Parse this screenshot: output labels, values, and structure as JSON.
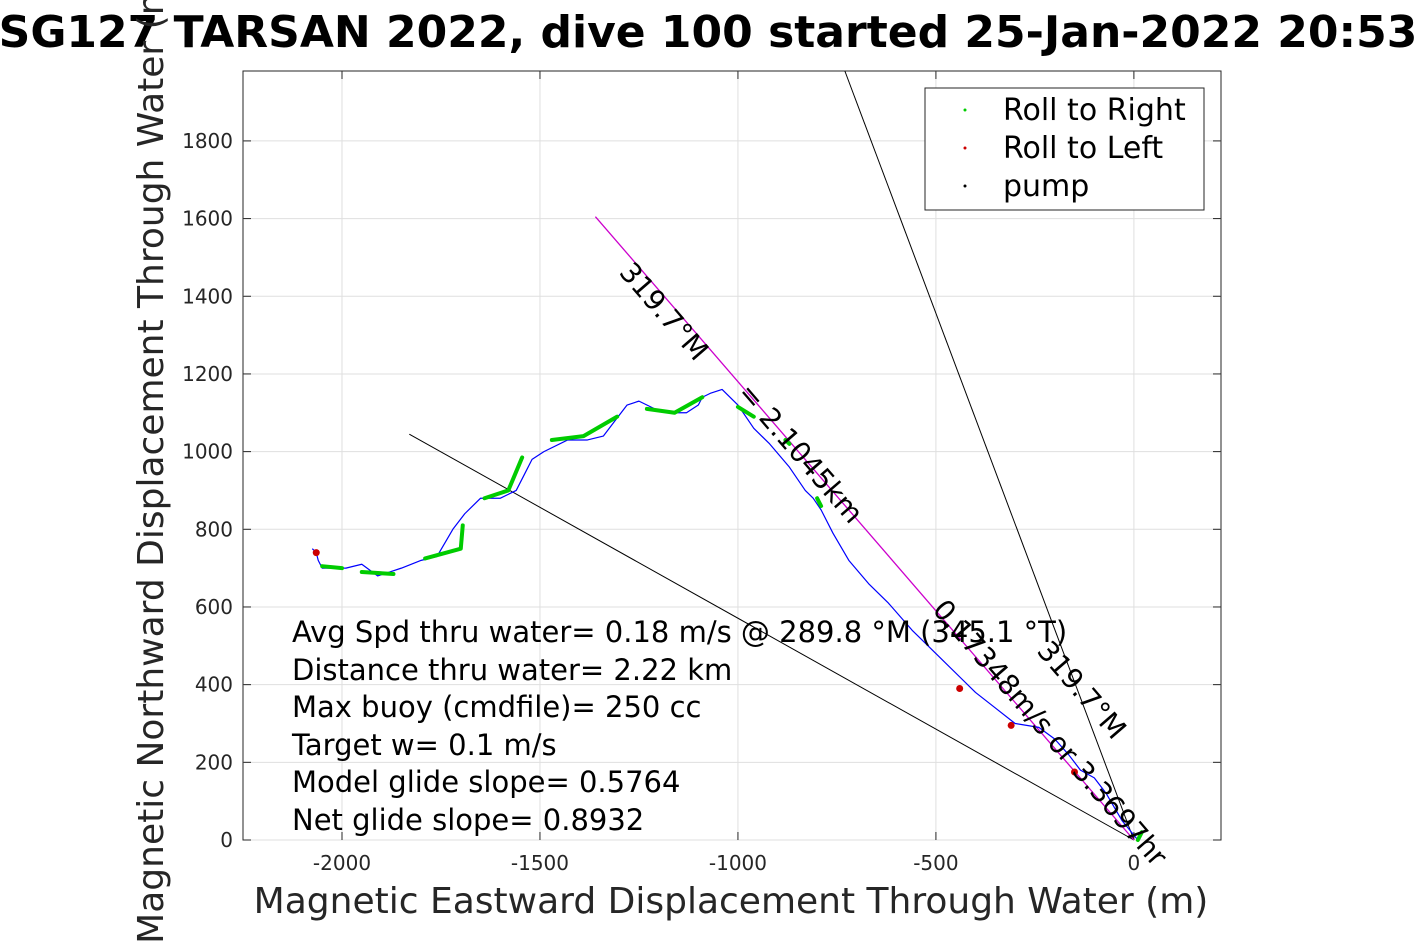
{
  "chart_data": {
    "type": "line",
    "title": "SG127 TARSAN 2022, dive 100 started 25-Jan-2022 20:53",
    "xlabel": "Magnetic Eastward Displacement Through Water (m)",
    "ylabel": "Magnetic Northward Displacement Through Water (m)",
    "xlim": [
      -2250,
      220
    ],
    "ylim": [
      0,
      1980
    ],
    "xticks": [
      -2000,
      -1500,
      -1000,
      -500,
      0
    ],
    "yticks": [
      0,
      200,
      400,
      600,
      800,
      1000,
      1200,
      1400,
      1600,
      1800
    ],
    "grid": true,
    "legend_position": "top-right",
    "legend": [
      {
        "label": "Roll to Right",
        "color": "#00cc00"
      },
      {
        "label": "Roll to Left",
        "color": "#cc0000"
      },
      {
        "label": "pump",
        "color": "#000000"
      }
    ],
    "track": {
      "color": "#0000ff",
      "x": [
        10,
        -30,
        -70,
        -100,
        -135,
        -165,
        -200,
        -240,
        -300,
        -350,
        -400,
        -440,
        -500,
        -560,
        -620,
        -670,
        -720,
        -760,
        -790,
        -810,
        -830,
        -870,
        -920,
        -960,
        -1000,
        -1040,
        -1070,
        -1090,
        -1100,
        -1130,
        -1170,
        -1210,
        -1250,
        -1280,
        -1310,
        -1340,
        -1380,
        -1430,
        -1490,
        -1520,
        -1540,
        -1560,
        -1600,
        -1650,
        -1690,
        -1720,
        -1760,
        -1800,
        -1850,
        -1880,
        -1910,
        -1950,
        -1990,
        -2020,
        -2050,
        -2060,
        -2065,
        -2075
      ],
      "y": [
        0,
        50,
        120,
        160,
        180,
        220,
        260,
        290,
        300,
        340,
        380,
        420,
        480,
        540,
        610,
        660,
        720,
        790,
        850,
        880,
        900,
        960,
        1020,
        1060,
        1120,
        1160,
        1150,
        1140,
        1120,
        1100,
        1100,
        1110,
        1130,
        1120,
        1080,
        1040,
        1030,
        1030,
        1000,
        980,
        940,
        900,
        880,
        880,
        840,
        800,
        730,
        720,
        700,
        690,
        680,
        710,
        700,
        700,
        700,
        720,
        740,
        750
      ]
    },
    "heading_line": {
      "color": "#cc00cc",
      "x": [
        0,
        -1360
      ],
      "y": [
        0,
        1605
      ]
    },
    "bound_lines": [
      {
        "x": [
          0,
          -730
        ],
        "y": [
          0,
          1980
        ]
      },
      {
        "x": [
          0,
          -1830
        ],
        "y": [
          0,
          1045
        ]
      }
    ],
    "roll_right_segments": [
      [
        [
          -2050,
          705
        ],
        [
          -2000,
          700
        ]
      ],
      [
        [
          -1950,
          690
        ],
        [
          -1870,
          685
        ]
      ],
      [
        [
          -1790,
          725
        ],
        [
          -1700,
          750
        ],
        [
          -1695,
          810
        ]
      ],
      [
        [
          -1640,
          880
        ],
        [
          -1580,
          900
        ],
        [
          -1545,
          985
        ]
      ],
      [
        [
          -1470,
          1030
        ],
        [
          -1390,
          1040
        ],
        [
          -1305,
          1090
        ]
      ],
      [
        [
          -1230,
          1110
        ],
        [
          -1160,
          1100
        ],
        [
          -1090,
          1140
        ]
      ],
      [
        [
          -1000,
          1115
        ],
        [
          -960,
          1090
        ]
      ],
      [
        [
          -880,
          1030
        ],
        [
          -870,
          1020
        ]
      ],
      [
        [
          -800,
          880
        ],
        [
          -790,
          860
        ]
      ],
      [
        [
          10,
          0
        ],
        [
          20,
          20
        ]
      ]
    ],
    "roll_left_points": [
      [
        -2065,
        740
      ],
      [
        -440,
        390
      ],
      [
        -310,
        295
      ],
      [
        -150,
        175
      ]
    ],
    "pump_points": [],
    "annotations": {
      "heading_upper": "319.7°M",
      "distance_label": "2.1045km",
      "speed_label": "= 0.17348m/s or 3.3697hr",
      "heading_lower": "319.7°M",
      "dist_prefix": "2.1045km",
      "km_line_text": "= 2.1045km",
      "rate_text": "0.17348m/s or 3.3697hr"
    },
    "stats": {
      "avg_speed": "Avg Spd thru water=  0.18 m/s @ 289.8 °M (345.1 °T)",
      "distance": "Distance thru water=  2.22 km",
      "max_buoy": "Max buoy (cmdfile)= 250 cc",
      "target_w": "Target w= 0.1 m/s",
      "model_glide": "Model glide slope= 0.5764",
      "net_glide": "Net glide slope= 0.8932"
    }
  }
}
